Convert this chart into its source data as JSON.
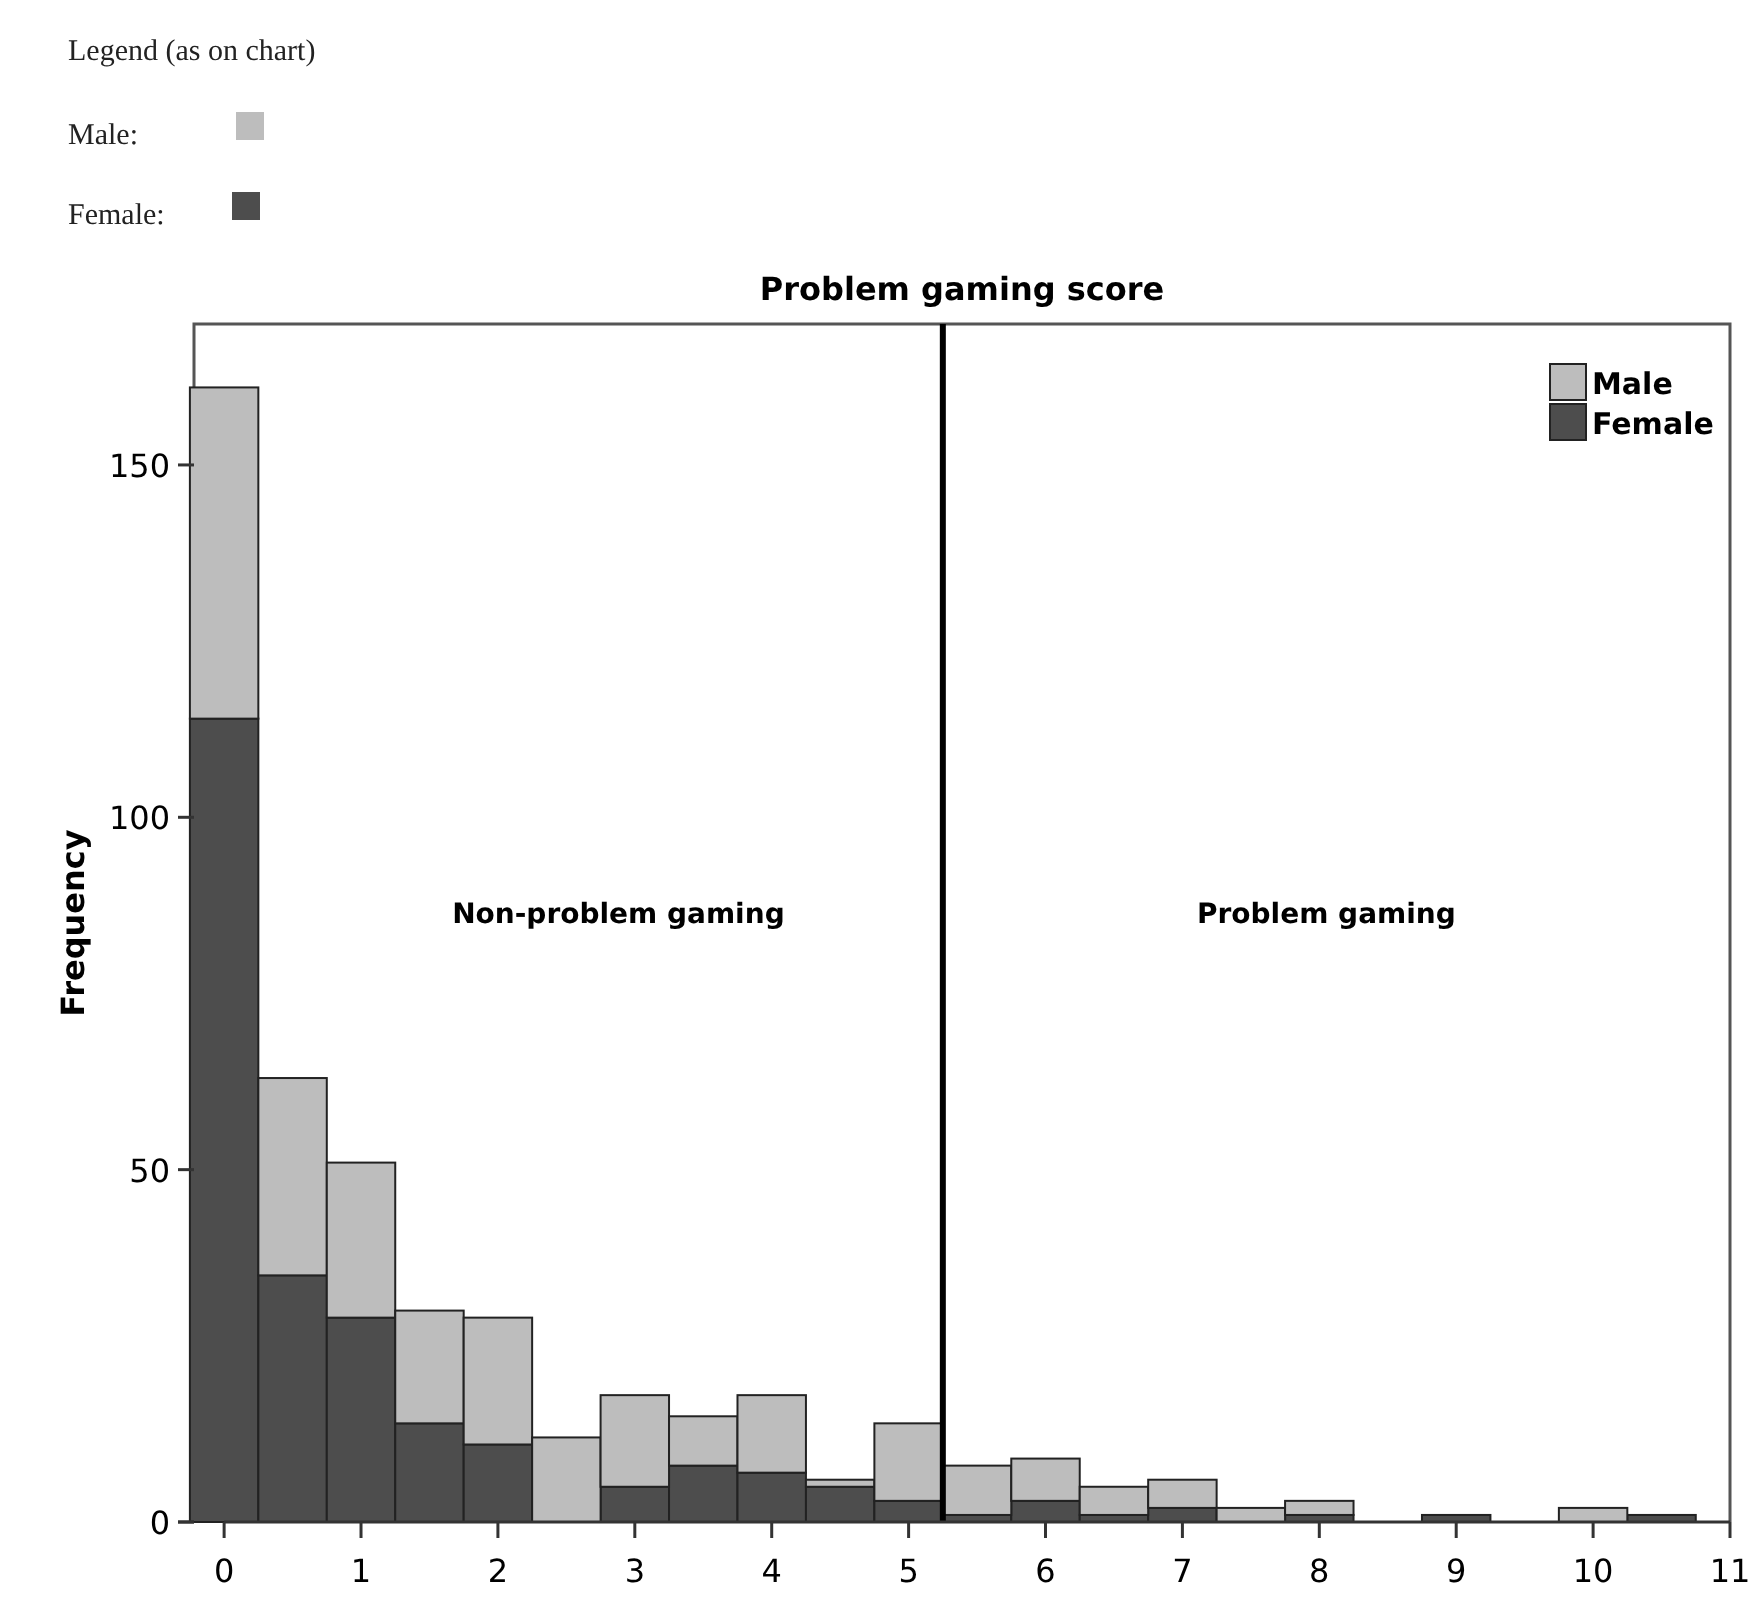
{
  "chart_data": {
    "type": "bar",
    "title": "Problem gaming score",
    "ylabel": "Frequency",
    "stacked": true,
    "legend": "top right",
    "grid": false,
    "x": [
      0,
      0.5,
      1,
      1.5,
      2,
      2.5,
      3,
      3.5,
      4,
      4.5,
      5,
      5.5,
      6,
      6.5,
      7,
      7.5,
      8,
      8.5,
      9,
      9.5,
      10,
      10.5
    ],
    "series": [
      {
        "name": "Female",
        "color": "#4d4d4d",
        "values": [
          114,
          35,
          29,
          14,
          11,
          0,
          5,
          8,
          7,
          5,
          3,
          1,
          3,
          1,
          2,
          0,
          1,
          0,
          1,
          0,
          0,
          1
        ]
      },
      {
        "name": "Male",
        "color": "#bdbdbd",
        "values": [
          47,
          28,
          22,
          16,
          18,
          12,
          13,
          7,
          11,
          1,
          11,
          7,
          6,
          4,
          4,
          2,
          2,
          0,
          0,
          0,
          2,
          0
        ]
      }
    ],
    "xlim": [
      -0.22,
      11
    ],
    "ylim": [
      0,
      170
    ],
    "xticks": [
      0,
      1,
      2,
      3,
      4,
      5,
      6,
      7,
      8,
      9,
      10,
      11
    ],
    "yticks": [
      0,
      50,
      100,
      150
    ],
    "ref_lines": [
      {
        "axis": "x",
        "value": 5.25,
        "color": "#000000"
      }
    ],
    "annotations": [
      "Legend (as on chart)",
      "Male:",
      "Female:",
      "Non-problem gaming",
      "Problem gaming"
    ]
  }
}
